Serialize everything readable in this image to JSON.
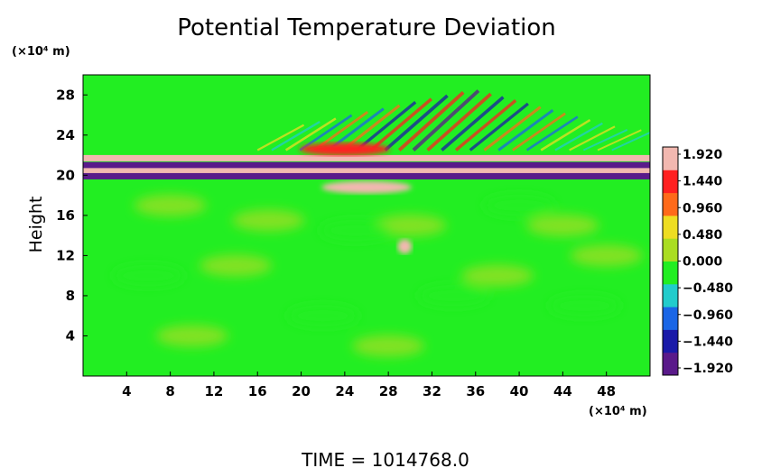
{
  "chart_data": {
    "type": "heatmap",
    "title": "Potential Temperature Deviation",
    "ylabel": "Height",
    "xlabel": "",
    "x_unit": "(×10⁴ m)",
    "y_unit": "(×10⁴ m)",
    "xlim": [
      0,
      52
    ],
    "ylim": [
      0,
      30
    ],
    "x_ticks": [
      "4",
      "8",
      "12",
      "16",
      "20",
      "24",
      "28",
      "32",
      "36",
      "40",
      "44",
      "48"
    ],
    "y_ticks": [
      "4",
      "8",
      "12",
      "16",
      "20",
      "24",
      "28"
    ],
    "colorbar": {
      "range": [
        -1.92,
        1.92
      ],
      "labels": [
        "1.920",
        "1.440",
        "0.960",
        "0.480",
        "0.000",
        "-0.480",
        "-0.960",
        "-1.440",
        "-1.920"
      ]
    },
    "field_summary": {
      "background_value": 0.1,
      "bands": [
        {
          "y_center": 21.7,
          "value": 1.9
        },
        {
          "y_center": 21.0,
          "value": -1.9
        },
        {
          "y_center": 20.4,
          "value": 1.9
        },
        {
          "y_center": 19.9,
          "value": -1.9
        }
      ],
      "features": [
        {
          "x": 26,
          "y": 18.8,
          "value": 1.6
        },
        {
          "x": 24,
          "y": 22.6,
          "value": 1.5
        },
        {
          "x": 29.5,
          "y": 12.9,
          "value": 1.7
        }
      ]
    },
    "footer": "TIME  =  1014768.0"
  },
  "colors": {
    "field_background": "#22ee22",
    "colorbar_scale": [
      "#5a1a8a",
      "#1a1aa8",
      "#1a66e6",
      "#22cccc",
      "#22ee22",
      "#aadd22",
      "#eedd22",
      "#ff6a1a",
      "#ff2020",
      "#f2b8b0"
    ]
  }
}
